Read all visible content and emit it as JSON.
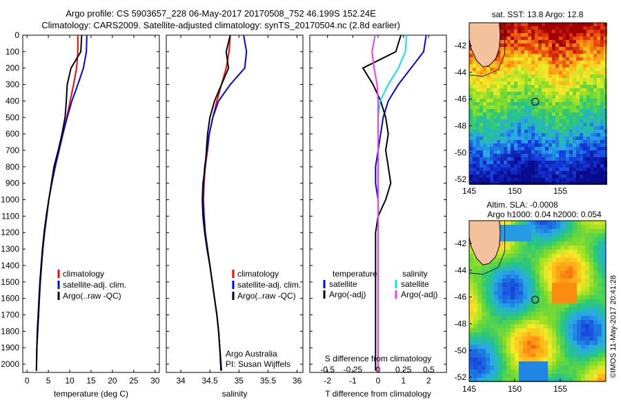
{
  "titles": {
    "line1": "Argo profile: CS 5903657_228 06-May-2017 20170508_752 46.199S 152.24E",
    "line2": "Climatology: CARS2009. Satellite-adjusted climatology: synTS_20170504.nc (2.8d earlier)"
  },
  "colors": {
    "climatology": "#ff0000",
    "satellite": "#0000ff",
    "argo": "#000000",
    "sal_satellite": "#00e5ff",
    "sal_argo": "#ff33ff"
  },
  "chart_data": [
    {
      "type": "line",
      "xlabel": "temperature (deg C)",
      "xlim": [
        -1,
        31
      ],
      "xticks": [
        0,
        5,
        10,
        15,
        20,
        25,
        30
      ],
      "ylim": [
        0,
        2050
      ],
      "yticks": [
        0,
        100,
        200,
        300,
        400,
        500,
        600,
        700,
        800,
        900,
        1000,
        1100,
        1200,
        1300,
        1400,
        1500,
        1600,
        1700,
        1800,
        1900,
        2000
      ],
      "legend": [
        "climatology",
        "satellite-adj. clim.",
        "Argo(..raw -QC)"
      ],
      "series": [
        {
          "name": "climatology",
          "color": "#ff0000",
          "x": [
            11.9,
            11.9,
            11.6,
            10.9,
            10.1,
            9.3,
            8.4,
            7.5,
            6.6,
            5.8,
            5.1,
            4.6,
            4.1,
            3.7,
            3.4,
            3.1,
            2.9,
            2.7,
            2.5,
            2.3,
            2.2
          ],
          "y": [
            0,
            100,
            200,
            300,
            400,
            500,
            600,
            700,
            800,
            900,
            1000,
            1100,
            1200,
            1300,
            1400,
            1500,
            1600,
            1700,
            1800,
            1900,
            2040
          ]
        },
        {
          "name": "satellite-adj. clim.",
          "color": "#0000ff",
          "x": [
            14.0,
            13.9,
            13.2,
            11.9,
            10.5,
            9.4,
            8.4,
            7.5,
            6.6,
            5.8,
            5.1,
            4.6,
            4.1,
            3.7,
            3.4,
            3.1,
            2.9,
            2.7,
            2.5,
            2.3,
            2.2
          ],
          "y": [
            0,
            100,
            200,
            300,
            400,
            500,
            600,
            700,
            800,
            900,
            1000,
            1100,
            1200,
            1300,
            1400,
            1500,
            1600,
            1700,
            1800,
            1900,
            2040
          ]
        },
        {
          "name": "Argo(..raw -QC)",
          "color": "#000000",
          "x": [
            12.8,
            12.6,
            10.3,
            9.4,
            9.2,
            8.9,
            8.2,
            7.3,
            6.3,
            5.7,
            5.1,
            4.5,
            4.0,
            3.6,
            3.3,
            3.0,
            2.8,
            2.6,
            2.4,
            2.3,
            2.2
          ],
          "y": [
            0,
            100,
            200,
            300,
            400,
            500,
            600,
            700,
            800,
            900,
            1000,
            1100,
            1200,
            1300,
            1400,
            1500,
            1600,
            1700,
            1800,
            1900,
            2040
          ]
        }
      ]
    },
    {
      "type": "line",
      "xlabel": "salinity",
      "xlim": [
        33.75,
        36.1
      ],
      "xticks": [
        34,
        34.5,
        35,
        35.5,
        36
      ],
      "xticklabels": [
        "34",
        "34.5",
        "35",
        "35.5",
        "36"
      ],
      "ylim": [
        0,
        2050
      ],
      "legend": [
        "climatology",
        "satellite-adj. clim.",
        "Argo(..raw -QC)"
      ],
      "annotation": [
        "Argo Australia",
        "PI: Susan Wijffels"
      ],
      "series": [
        {
          "name": "climatology",
          "color": "#ff0000",
          "x": [
            34.85,
            34.83,
            34.78,
            34.7,
            34.62,
            34.55,
            34.49,
            34.46,
            34.42,
            34.4,
            34.39,
            34.4,
            34.42,
            34.46,
            34.5,
            34.54,
            34.58,
            34.62,
            34.65,
            34.67,
            34.7
          ],
          "y": [
            0,
            100,
            200,
            300,
            400,
            500,
            600,
            700,
            800,
            900,
            1000,
            1100,
            1200,
            1300,
            1400,
            1500,
            1600,
            1700,
            1800,
            1900,
            2040
          ]
        },
        {
          "name": "satellite-adj. clim.",
          "color": "#0000ff",
          "x": [
            35.08,
            35.13,
            35.1,
            34.85,
            34.65,
            34.55,
            34.49,
            34.45,
            34.41,
            34.39,
            34.38,
            34.4,
            34.42,
            34.46,
            34.5,
            34.54,
            34.58,
            34.62,
            34.65,
            34.67,
            34.7
          ],
          "y": [
            0,
            100,
            200,
            300,
            400,
            500,
            600,
            700,
            800,
            900,
            1000,
            1100,
            1200,
            1300,
            1400,
            1500,
            1600,
            1700,
            1800,
            1900,
            2040
          ]
        },
        {
          "name": "Argo(..raw -QC)",
          "color": "#000000",
          "x": [
            34.85,
            34.78,
            34.82,
            34.7,
            34.58,
            34.5,
            34.46,
            34.44,
            34.42,
            34.38,
            34.37,
            34.38,
            34.41,
            34.45,
            34.5,
            34.54,
            34.58,
            34.62,
            34.65,
            34.67,
            34.69
          ],
          "y": [
            0,
            100,
            200,
            300,
            400,
            500,
            600,
            700,
            800,
            900,
            1000,
            1100,
            1200,
            1300,
            1400,
            1500,
            1600,
            1700,
            1800,
            1900,
            2040
          ]
        }
      ]
    },
    {
      "type": "line",
      "xlabel": "T difference from climatology",
      "x2label": "S difference from climatology",
      "xlim": [
        -2.7,
        2.7
      ],
      "xticks": [
        -2,
        -1,
        0,
        1,
        2
      ],
      "x2ticks": [
        -0.5,
        -0.25,
        0,
        0.25,
        0.5
      ],
      "x2ticklabels": [
        "-0.5",
        "-0.25",
        "0",
        "0.25",
        "0.5"
      ],
      "ylim": [
        0,
        2050
      ],
      "legend": {
        "temperature": [
          "satellite",
          "Argo(-adj)"
        ],
        "salinity": [
          "satellite",
          "Argo(-adj)"
        ]
      },
      "legend_headers": [
        "temperature",
        "salinity"
      ],
      "series": [
        {
          "name": "temperature satellite",
          "color": "#0000ff",
          "x": [
            1.9,
            1.8,
            1.3,
            0.8,
            0.4,
            0.2,
            0.1,
            0.0,
            -0.1,
            -0.1,
            0.0,
            0.0,
            0.0,
            0.0,
            0.0,
            0.0,
            0.0,
            0.0,
            0.0,
            0.0,
            0.0
          ],
          "y": [
            0,
            100,
            200,
            300,
            400,
            500,
            600,
            700,
            800,
            900,
            1000,
            1100,
            1200,
            1300,
            1400,
            1500,
            1600,
            1700,
            1800,
            1900,
            2040
          ]
        },
        {
          "name": "temperature Argo(-adj)",
          "color": "#000000",
          "x": [
            0.9,
            0.7,
            -0.6,
            -0.2,
            0.1,
            0.3,
            0.4,
            0.3,
            0.4,
            0.5,
            0.3,
            0.0,
            -0.1,
            -0.1,
            -0.1,
            -0.1,
            -0.1,
            -0.1,
            -0.1,
            -0.1,
            -0.1
          ],
          "y": [
            0,
            100,
            200,
            300,
            400,
            500,
            600,
            700,
            800,
            900,
            1000,
            1100,
            1200,
            1300,
            1400,
            1500,
            1600,
            1700,
            1800,
            1900,
            2040
          ]
        },
        {
          "name": "salinity satellite",
          "color": "#00e5ff",
          "x": [
            0.28,
            0.27,
            0.2,
            0.1,
            0.02,
            0.0,
            0.0,
            0.0,
            0.0,
            0.0,
            0.0,
            0.0,
            0.0,
            0.0,
            0.0,
            0.0,
            0.0,
            0.0,
            0.0,
            0.0,
            0.0
          ],
          "y": [
            0,
            100,
            200,
            300,
            400,
            500,
            600,
            700,
            800,
            900,
            1000,
            1100,
            1200,
            1300,
            1400,
            1500,
            1600,
            1700,
            1800,
            1900,
            2040
          ]
        },
        {
          "name": "salinity Argo(-adj)",
          "color": "#ff33ff",
          "x": [
            -0.03,
            -0.06,
            -0.04,
            -0.01,
            0.0,
            0.0,
            0.0,
            0.0,
            0.0,
            0.0,
            0.0,
            0.0,
            0.0,
            0.0,
            0.0,
            0.0,
            0.0,
            0.0,
            0.0,
            0.0,
            0.0
          ],
          "y": [
            0,
            100,
            200,
            300,
            400,
            500,
            600,
            700,
            800,
            900,
            1000,
            1100,
            1200,
            1300,
            1400,
            1500,
            1600,
            1700,
            1800,
            1900,
            2040
          ]
        }
      ]
    },
    {
      "type": "heatmap",
      "title": "sat. SST: 13.8 Argo: 12.8",
      "xlim": [
        145,
        160
      ],
      "ylim": [
        -52.3,
        -40.3
      ],
      "xticks": [
        145,
        150,
        155
      ],
      "yticks": [
        -42,
        -44,
        -46,
        -48,
        -50,
        -52
      ],
      "marker": {
        "lon": 152.24,
        "lat": -46.199
      }
    },
    {
      "type": "heatmap",
      "title": "Altim. SLA: -0.0008",
      "subtitle": "Argo h1000: 0.04 h2000: 0.054",
      "xlim": [
        145,
        160
      ],
      "ylim": [
        -52.3,
        -40.3
      ],
      "xticks": [
        145,
        150,
        155
      ],
      "yticks": [
        -42,
        -44,
        -46,
        -48,
        -50,
        -52
      ],
      "marker": {
        "lon": 152.24,
        "lat": -46.199
      }
    }
  ],
  "stamp": "©IMOS 11-May-2017 20:41:28"
}
